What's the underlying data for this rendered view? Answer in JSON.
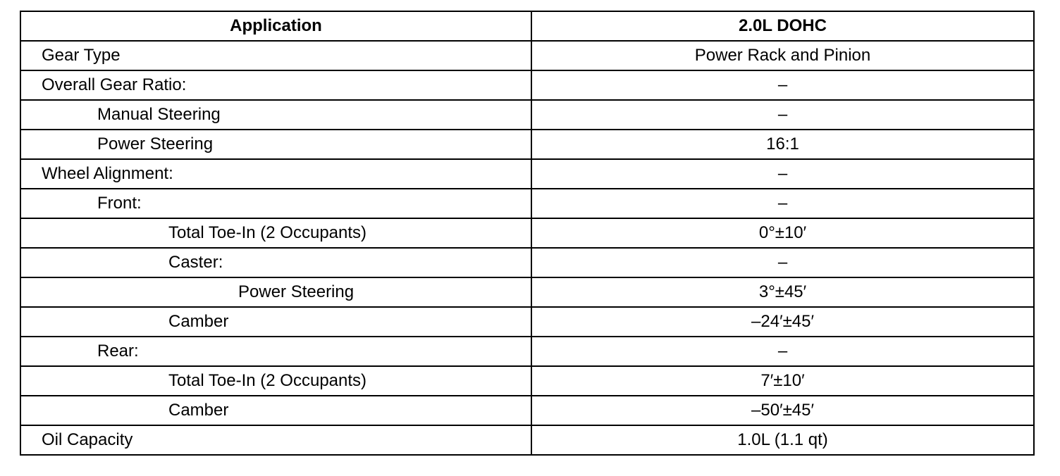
{
  "table": {
    "headers": [
      "Application",
      "2.0L DOHC"
    ],
    "rows": [
      {
        "label": "Gear Type",
        "level": 0,
        "value": "Power Rack and Pinion"
      },
      {
        "label": "Overall Gear Ratio:",
        "level": 0,
        "value": "–"
      },
      {
        "label": "Manual Steering",
        "level": 1,
        "value": "–"
      },
      {
        "label": "Power Steering",
        "level": 1,
        "value": "16:1"
      },
      {
        "label": "Wheel Alignment:",
        "level": 0,
        "value": "–"
      },
      {
        "label": "Front:",
        "level": 1,
        "value": "–"
      },
      {
        "label": "Total Toe-In (2 Occupants)",
        "level": 2,
        "value": "0°±10′"
      },
      {
        "label": "Caster:",
        "level": 2,
        "value": "–"
      },
      {
        "label": "Power Steering",
        "level": 3,
        "value": "3°±45′"
      },
      {
        "label": "Camber",
        "level": 2,
        "value": "–24′±45′"
      },
      {
        "label": "Rear:",
        "level": 1,
        "value": "–"
      },
      {
        "label": "Total Toe-In (2 Occupants)",
        "level": 2,
        "value": "7′±10′"
      },
      {
        "label": "Camber",
        "level": 2,
        "value": "–50′±45′"
      },
      {
        "label": "Oil Capacity",
        "level": 0,
        "value": "1.0L (1.1 qt)"
      }
    ]
  }
}
